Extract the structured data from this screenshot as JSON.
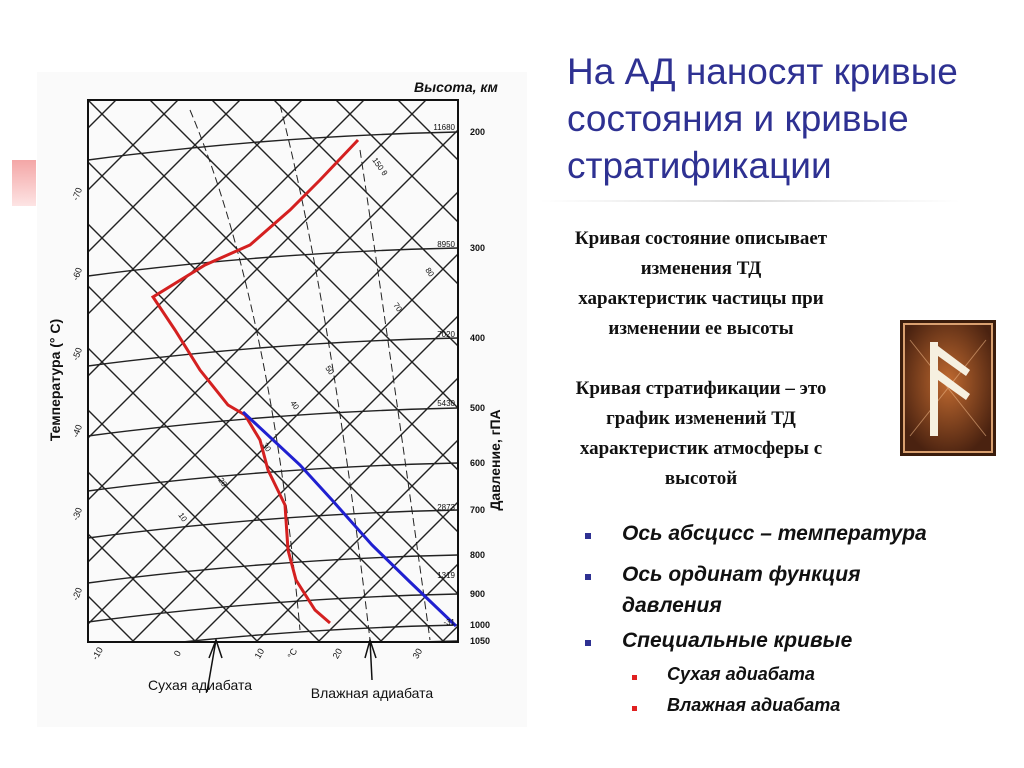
{
  "slide": {
    "title_lines": [
      "На АД наносят кривые",
      "состояния и кривые",
      "стратификации"
    ],
    "paragraphs": [
      [
        "Кривая состояние описывает",
        "изменения ТД",
        "характеристик частицы при",
        "изменении ее высоты"
      ],
      [
        "Кривая стратификации – это",
        "график изменений  ТД",
        "характеристик атмосферы с",
        "высотой"
      ]
    ],
    "bullets": [
      "Ось абсцисс – температура",
      "Ось ординат функция давления",
      "Специальные кривые"
    ],
    "sub_bullets": [
      "Сухая адиабата",
      "Влажная адиабата"
    ]
  },
  "diagram": {
    "height_axis_label": "Высота, км",
    "temperature_axis_label": "Температура (° С)",
    "pressure_axis_label": "Давление, гПА",
    "pressure_ticks": [
      "200",
      "300",
      "400",
      "500",
      "600",
      "700",
      "800",
      "900",
      "1000",
      "1050"
    ],
    "height_ticks": [
      "11680",
      "8950",
      "7020",
      "5430",
      "2873",
      "1319",
      "-31"
    ],
    "left_temperature_ticks": [
      "-70",
      "-60",
      "-50",
      "-40",
      "-30",
      "-20"
    ],
    "bottom_temperature_ticks": [
      "-10",
      "0",
      "10",
      "°C",
      "20",
      "30"
    ],
    "adiabat_labels": [
      "150 θ",
      "80",
      "70",
      "50",
      "40",
      "30",
      "20",
      "10"
    ],
    "dry_adiabat_label": "Сухая адиабата",
    "moist_adiabat_label": "Влажная адиабата"
  }
}
